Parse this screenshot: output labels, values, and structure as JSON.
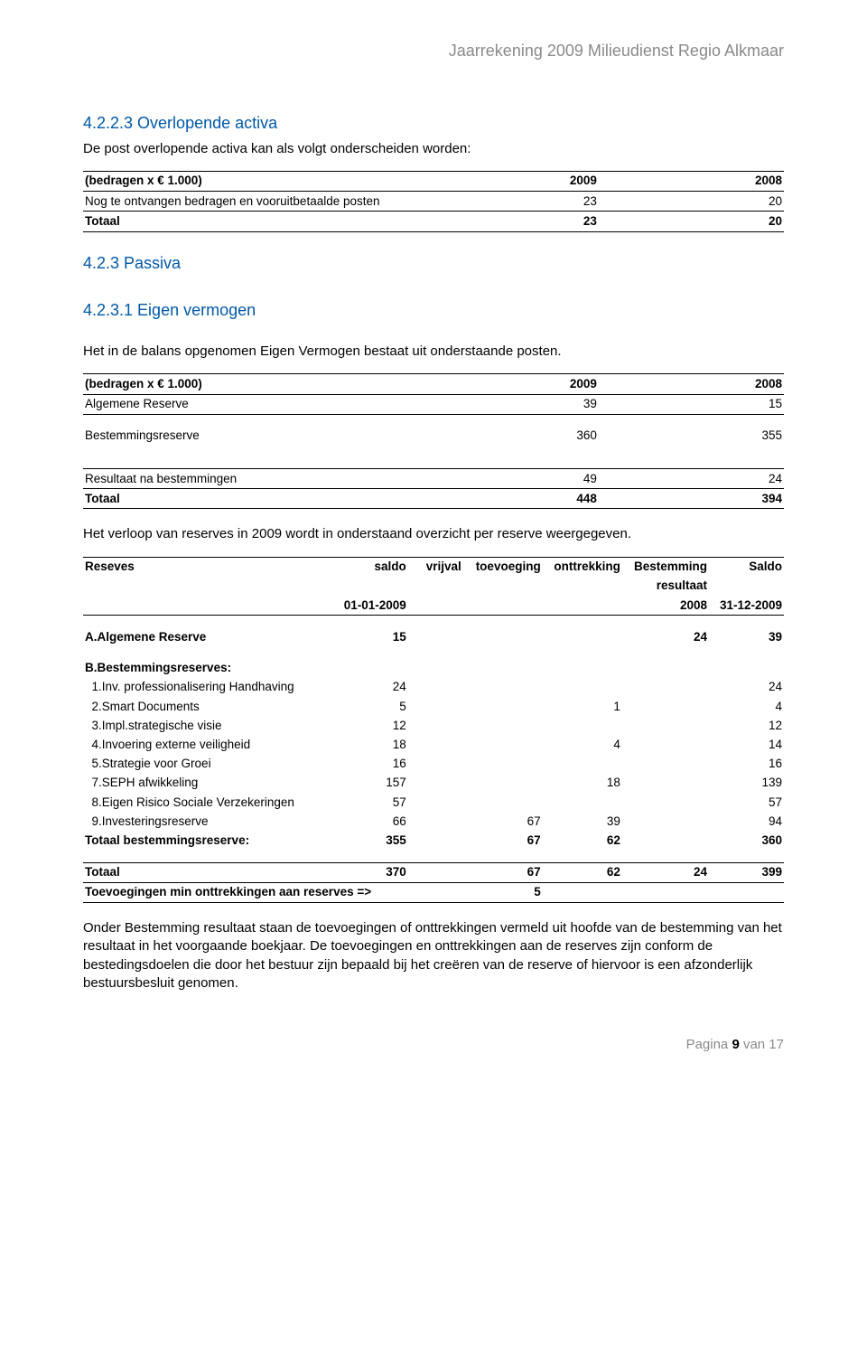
{
  "doc": {
    "header": "Jaarrekening 2009 Milieudienst Regio Alkmaar",
    "footer_prefix": "Pagina ",
    "footer_bold": "9",
    "footer_suffix": " van 17"
  },
  "s1": {
    "heading": "4.2.2.3 Overlopende activa",
    "intro": "De post overlopende activa kan als volgt onderscheiden worden:",
    "table": {
      "unit": "(bedragen x € 1.000)",
      "col1": "2009",
      "col2": "2008",
      "rows": [
        {
          "label": "Nog te ontvangen bedragen en vooruitbetaalde posten",
          "v1": "23",
          "v2": "20"
        }
      ],
      "total_label": "Totaal",
      "total_v1": "23",
      "total_v2": "20"
    }
  },
  "s2": {
    "heading": "4.2.3 Passiva"
  },
  "s3": {
    "heading": "4.2.3.1 Eigen vermogen",
    "intro": "Het in de balans opgenomen Eigen Vermogen bestaat uit onderstaande posten.",
    "table": {
      "unit": "(bedragen x € 1.000)",
      "col1": "2009",
      "col2": "2008",
      "r1": {
        "label": "Algemene Reserve",
        "v1": "39",
        "v2": "15"
      },
      "r2": {
        "label": "Bestemmingsreserve",
        "v1": "360",
        "v2": "355"
      },
      "r3": {
        "label": "Resultaat na bestemmingen",
        "v1": "49",
        "v2": "24"
      },
      "total_label": "Totaal",
      "total_v1": "448",
      "total_v2": "394"
    },
    "after": "Het verloop van reserves in 2009 wordt in onderstaand overzicht per reserve weergegeven."
  },
  "s4": {
    "head": {
      "c0": "Reseves",
      "c1": "saldo",
      "c2": "vrijval",
      "c3": "toevoeging",
      "c4": "onttrekking",
      "c5": "Bestemming",
      "c6": "Saldo",
      "sub1": "01-01-2009",
      "sub5a": "resultaat",
      "sub5b": "2008",
      "sub6": "31-12-2009"
    },
    "A_label": "A.Algemene Reserve",
    "A": {
      "saldo": "15",
      "best": "24",
      "eind": "39"
    },
    "B_header": "B.Bestemmingsreserves:",
    "B": [
      {
        "label": "  1.Inv. professionalisering Handhaving",
        "saldo": "24",
        "toe": "",
        "ont": "",
        "eind": "24"
      },
      {
        "label": "  2.Smart Documents",
        "saldo": "5",
        "toe": "",
        "ont": "1",
        "eind": "4"
      },
      {
        "label": "  3.Impl.strategische visie",
        "saldo": "12",
        "toe": "",
        "ont": "",
        "eind": "12"
      },
      {
        "label": "  4.Invoering externe veiligheid",
        "saldo": "18",
        "toe": "",
        "ont": "4",
        "eind": "14"
      },
      {
        "label": "  5.Strategie voor Groei",
        "saldo": "16",
        "toe": "",
        "ont": "",
        "eind": "16"
      },
      {
        "label": "  7.SEPH afwikkeling",
        "saldo": "157",
        "toe": "",
        "ont": "18",
        "eind": "139"
      },
      {
        "label": "  8.Eigen Risico Sociale Verzekeringen",
        "saldo": "57",
        "toe": "",
        "ont": "",
        "eind": "57"
      },
      {
        "label": "  9.Investeringsreserve",
        "saldo": "66",
        "toe": "67",
        "ont": "39",
        "eind": "94"
      }
    ],
    "Btot": {
      "label": "Totaal bestemmingsreserve:",
      "saldo": "355",
      "toe": "67",
      "ont": "62",
      "eind": "360"
    },
    "Gtot": {
      "label": "Totaal",
      "saldo": "370",
      "toe": "67",
      "ont": "62",
      "best": "24",
      "eind": "399"
    },
    "adj": {
      "label": "Toevoegingen min onttrekkingen aan reserves =>",
      "val": "5"
    }
  },
  "closing": "Onder Bestemming resultaat staan de toevoegingen of onttrekkingen vermeld uit hoofde van de bestemming van het resultaat in het voorgaande boekjaar. De toevoegingen en onttrekkingen aan de reserves zijn conform de bestedingsdoelen die door het bestuur zijn bepaald bij het creëren van de reserve of hiervoor is een afzonderlijk bestuursbesluit genomen."
}
